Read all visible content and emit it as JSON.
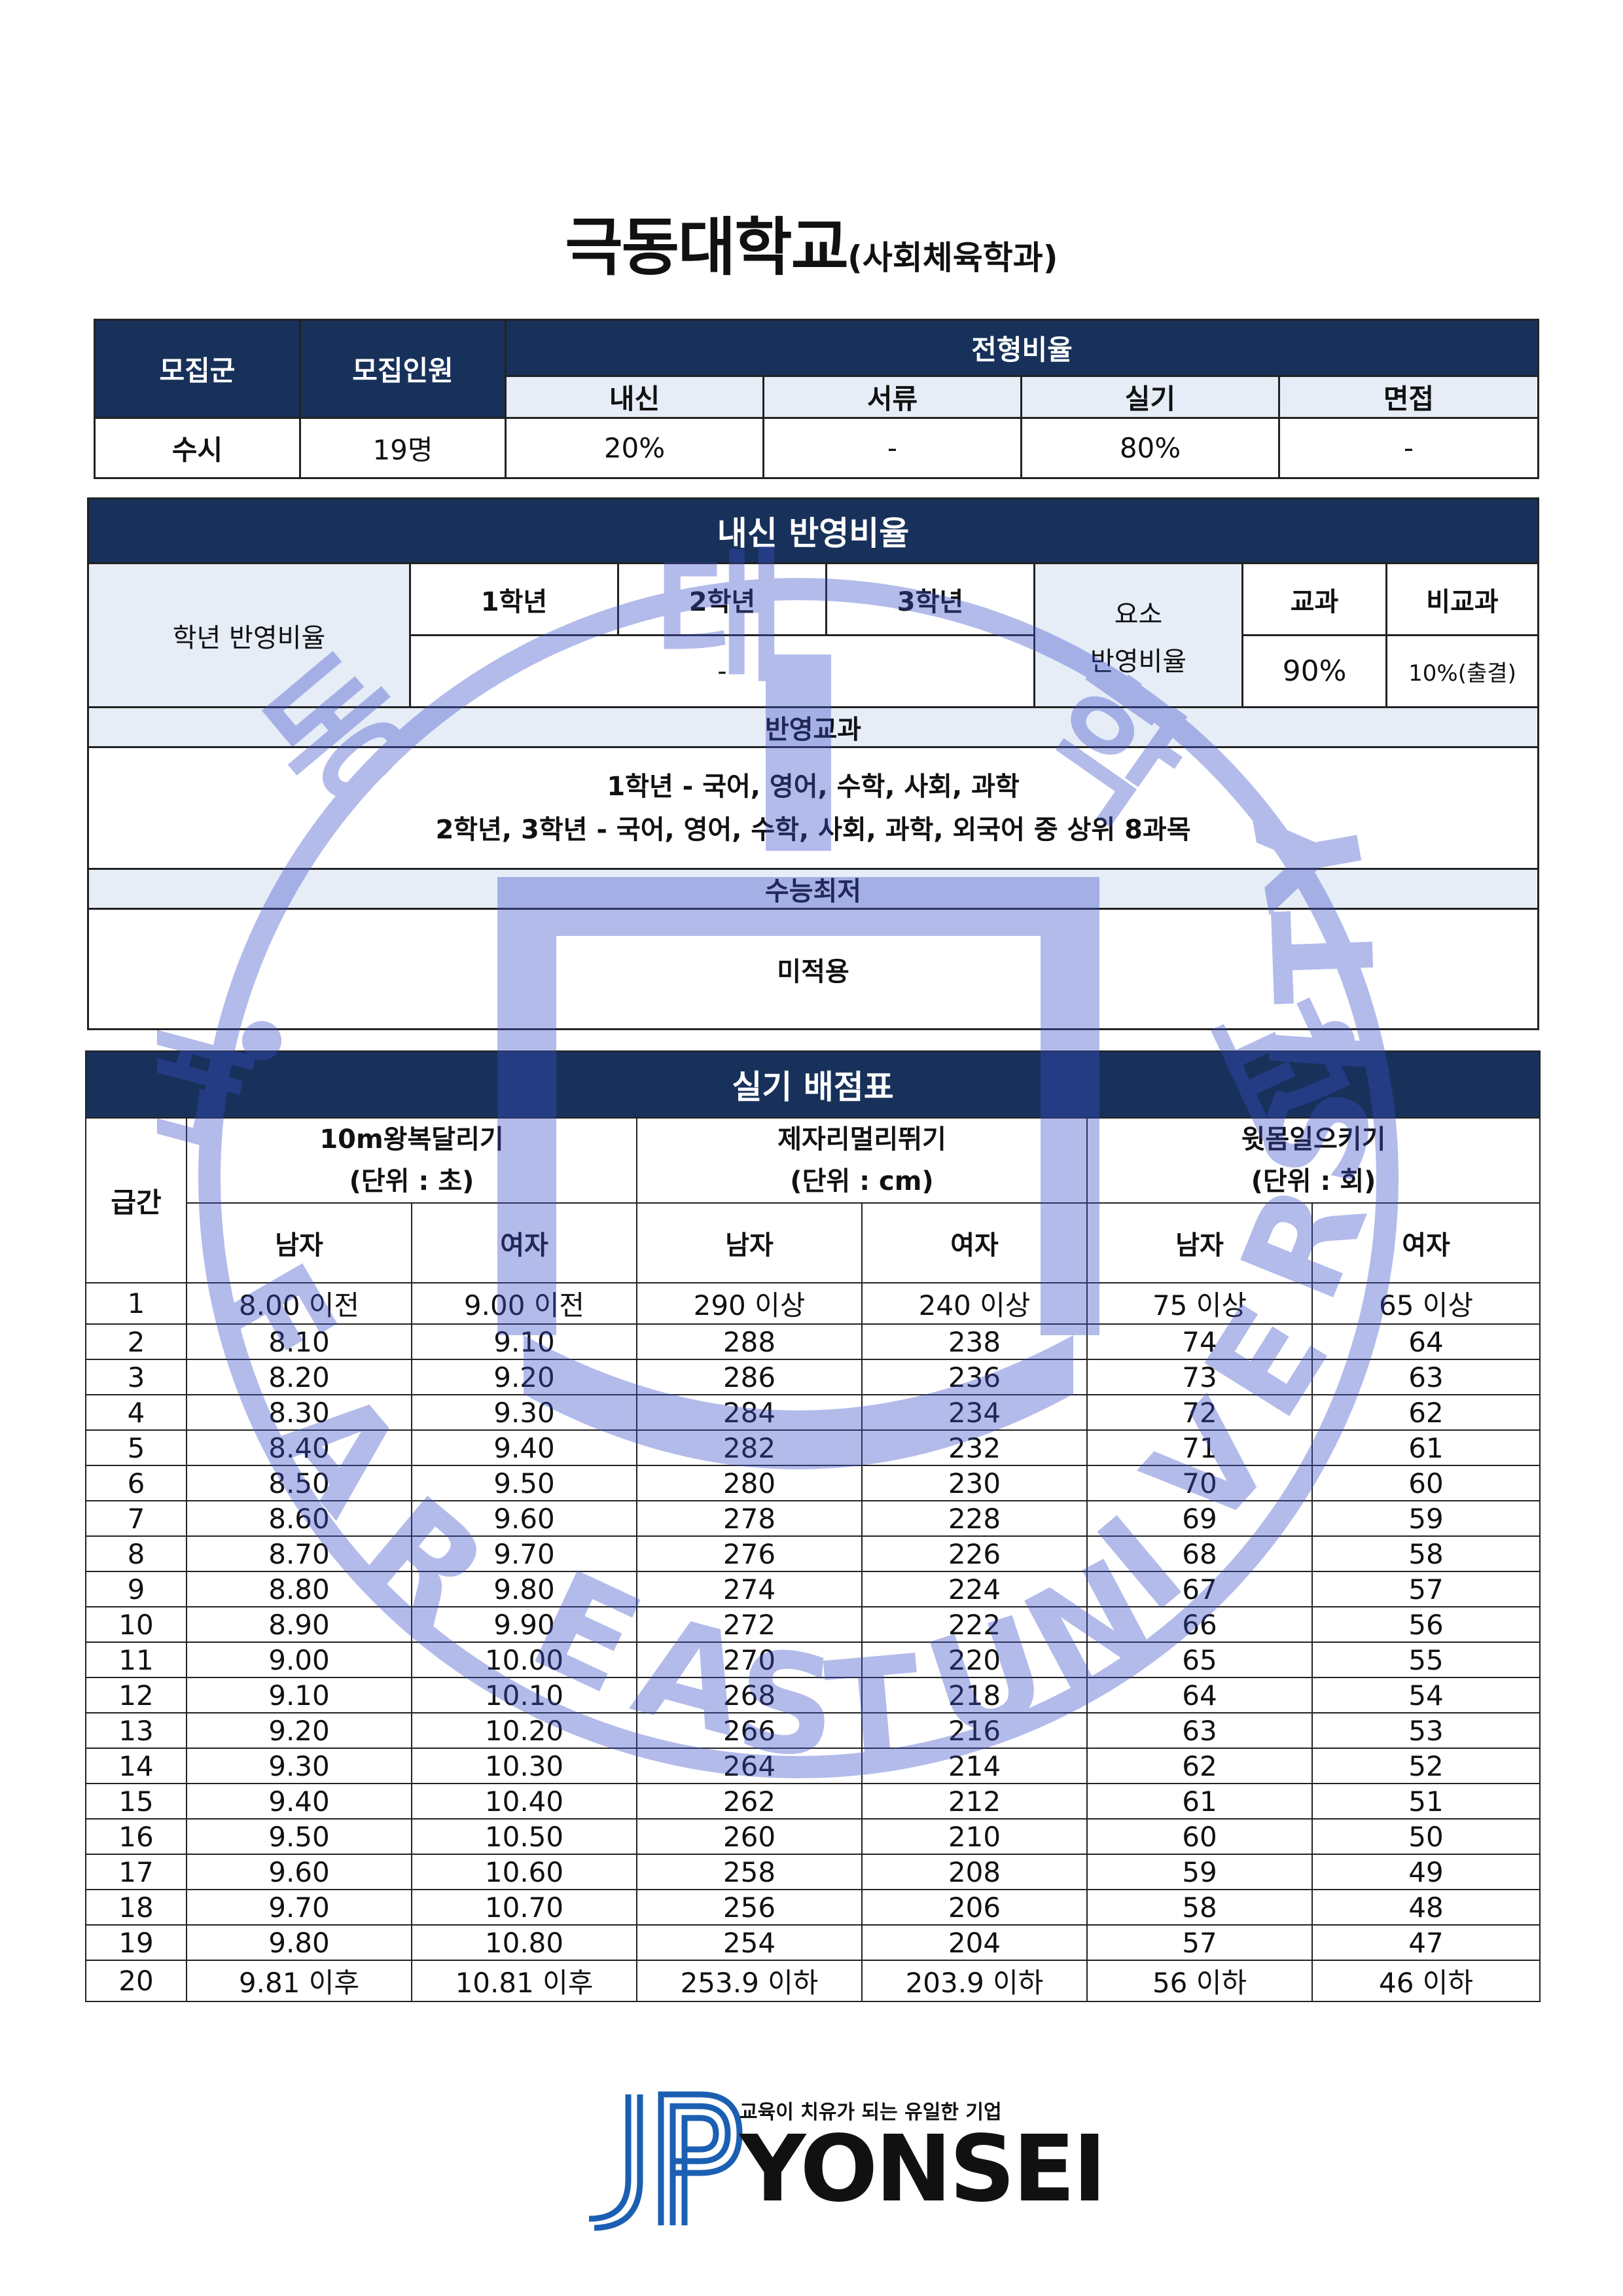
{
  "title": {
    "main": "극동대학교",
    "sub": "(사회체육학과)"
  },
  "admission": {
    "headers": {
      "group": "모집군",
      "count": "모집인원",
      "ratio": "전형비율"
    },
    "ratio_cols": [
      "내신",
      "서류",
      "실기",
      "면접"
    ],
    "row": {
      "group": "수시",
      "count": "19명",
      "ratios": [
        "20%",
        "-",
        "80%",
        "-"
      ]
    }
  },
  "grades": {
    "title": "내신 반영비율",
    "year_label": "학년 반영비율",
    "years": [
      "1학년",
      "2학년",
      "3학년"
    ],
    "year_value": "-",
    "element_label_1": "요소",
    "element_label_2": "반영비율",
    "element_cols": [
      "교과",
      "비교과"
    ],
    "element_values": [
      "90%",
      "10%(출결)"
    ],
    "subjects_title": "반영교과",
    "subjects_lines": [
      "1학년 - 국어, 영어, 수학, 사회, 과학",
      "2학년, 3학년 - 국어, 영어, 수학, 사회, 과학, 외국어 중 상위 8과목"
    ],
    "csat_title": "수능최저",
    "csat_value": "미적용"
  },
  "practical": {
    "title": "실기 배점표",
    "grade_label": "급간",
    "events": [
      {
        "name": "10m왕복달리기",
        "unit": "(단위 : 초)"
      },
      {
        "name": "제자리멀리뛰기",
        "unit": "(단위 : cm)"
      },
      {
        "name": "윗몸일으키기",
        "unit": "(단위 : 회)"
      }
    ],
    "genders": [
      "남자",
      "여자",
      "남자",
      "여자",
      "남자",
      "여자"
    ],
    "rows": [
      [
        "1",
        "8.00 이전",
        "9.00 이전",
        "290 이상",
        "240 이상",
        "75 이상",
        "65 이상"
      ],
      [
        "2",
        "8.10",
        "9.10",
        "288",
        "238",
        "74",
        "64"
      ],
      [
        "3",
        "8.20",
        "9.20",
        "286",
        "236",
        "73",
        "63"
      ],
      [
        "4",
        "8.30",
        "9.30",
        "284",
        "234",
        "72",
        "62"
      ],
      [
        "5",
        "8.40",
        "9.40",
        "282",
        "232",
        "71",
        "61"
      ],
      [
        "6",
        "8.50",
        "9.50",
        "280",
        "230",
        "70",
        "60"
      ],
      [
        "7",
        "8.60",
        "9.60",
        "278",
        "228",
        "69",
        "59"
      ],
      [
        "8",
        "8.70",
        "9.70",
        "276",
        "226",
        "68",
        "58"
      ],
      [
        "9",
        "8.80",
        "9.80",
        "274",
        "224",
        "67",
        "57"
      ],
      [
        "10",
        "8.90",
        "9.90",
        "272",
        "222",
        "66",
        "56"
      ],
      [
        "11",
        "9.00",
        "10.00",
        "270",
        "220",
        "65",
        "55"
      ],
      [
        "12",
        "9.10",
        "10.10",
        "268",
        "218",
        "64",
        "54"
      ],
      [
        "13",
        "9.20",
        "10.20",
        "266",
        "216",
        "63",
        "53"
      ],
      [
        "14",
        "9.30",
        "10.30",
        "264",
        "214",
        "62",
        "52"
      ],
      [
        "15",
        "9.40",
        "10.40",
        "262",
        "212",
        "61",
        "51"
      ],
      [
        "16",
        "9.50",
        "10.50",
        "260",
        "210",
        "60",
        "50"
      ],
      [
        "17",
        "9.60",
        "10.60",
        "258",
        "208",
        "59",
        "49"
      ],
      [
        "18",
        "9.70",
        "10.70",
        "256",
        "206",
        "58",
        "48"
      ],
      [
        "19",
        "9.80",
        "10.80",
        "254",
        "204",
        "57",
        "47"
      ],
      [
        "20",
        "9.81 이후",
        "10.81 이후",
        "253.9 이하",
        "203.9 이하",
        "56 이하",
        "46 이하"
      ]
    ]
  },
  "watermark": {
    "text": "FAR EAST UNIVERSITY",
    "glyphs": "극동대학교",
    "color": "#3b4fc9"
  },
  "logo": {
    "tagline": "교육이 치유가 되는 유일한 기업",
    "mark": "JP",
    "brand": "YONSEI",
    "color": "#1b5fb3"
  },
  "colors": {
    "header_bg": "#17315a",
    "subheader_bg": "#e6edf7"
  }
}
